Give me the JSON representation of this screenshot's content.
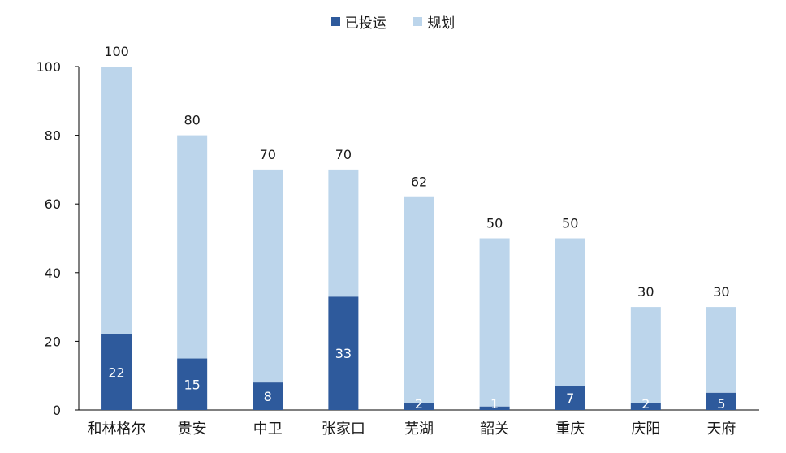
{
  "chart_data": {
    "type": "bar",
    "stacked": true,
    "categories": [
      "和林格尔",
      "贵安",
      "中卫",
      "张家口",
      "芜湖",
      "韶关",
      "重庆",
      "庆阳",
      "天府"
    ],
    "series": [
      {
        "name": "已投运",
        "values": [
          22,
          15,
          8,
          33,
          2,
          1,
          7,
          2,
          5
        ],
        "color": "#2e5a9c"
      },
      {
        "name": "规划",
        "values": [
          78,
          65,
          62,
          37,
          60,
          49,
          43,
          28,
          25
        ],
        "color": "#bcd5eb"
      }
    ],
    "totals": [
      100,
      80,
      70,
      70,
      62,
      50,
      50,
      30,
      30
    ],
    "ylim": [
      0,
      100
    ],
    "yticks": [
      0,
      20,
      40,
      60,
      80,
      100
    ],
    "legend_position": "top-center",
    "grid": false
  }
}
